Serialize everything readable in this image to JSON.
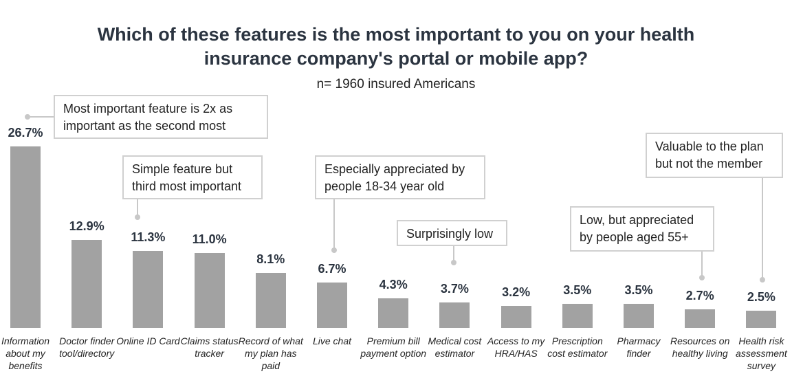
{
  "chart_data": {
    "type": "bar",
    "title": "Which of these features is the most important to you on your health insurance company's portal or mobile app?",
    "subtitle": "n= 1960 insured Americans",
    "categories": [
      "Information about my benefits",
      "Doctor finder tool/directory",
      "Online ID Card",
      "Claims status tracker",
      "Record of what my plan has paid",
      "Live chat",
      "Premium bill payment option",
      "Medical cost estimator",
      "Access to my HRA/HAS",
      "Prescription cost estimator",
      "Pharmacy finder",
      "Resources on healthy living",
      "Health risk assessment survey"
    ],
    "values": [
      26.7,
      12.9,
      11.3,
      11.0,
      8.1,
      6.7,
      4.3,
      3.7,
      3.2,
      3.5,
      3.5,
      2.7,
      2.5
    ],
    "value_labels": [
      "26.7%",
      "12.9%",
      "11.3%",
      "11.0%",
      "8.1%",
      "6.7%",
      "4.3%",
      "3.7%",
      "3.2%",
      "3.5%",
      "3.5%",
      "2.7%",
      "2.5%"
    ],
    "color": "#a2a2a2",
    "annotations": [
      {
        "text": "Most important feature is 2x as important as the second most"
      },
      {
        "text": "Simple feature but third most important"
      },
      {
        "text": "Especially appreciated by people 18-34 year old"
      },
      {
        "text": "Surprisingly low"
      },
      {
        "text": "Low, but appreciated by people aged 55+"
      },
      {
        "text": "Valuable to the plan but not the member"
      }
    ]
  }
}
